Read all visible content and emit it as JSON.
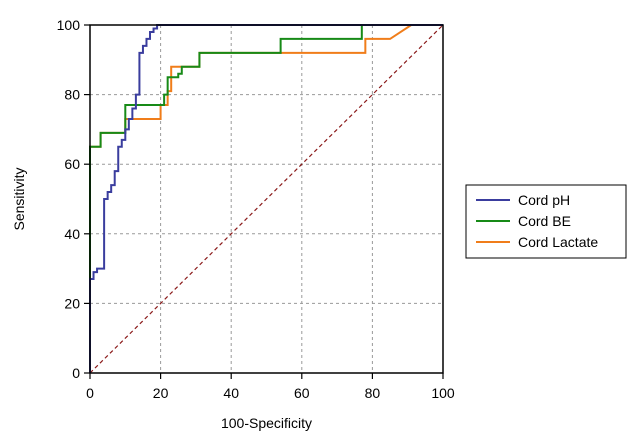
{
  "chart_data": {
    "type": "line",
    "title": "",
    "xlabel": "100-Specificity",
    "ylabel": "Sensitivity",
    "xlim": [
      0,
      100
    ],
    "ylim": [
      0,
      100
    ],
    "xticks": [
      0,
      20,
      40,
      60,
      80,
      100
    ],
    "yticks": [
      0,
      20,
      40,
      60,
      80,
      100
    ],
    "grid": true,
    "legend_position": "right",
    "series": [
      {
        "name": "Cord pH",
        "color": "#3a3d9e",
        "points": [
          [
            0,
            0
          ],
          [
            0,
            27
          ],
          [
            1,
            27
          ],
          [
            1,
            29
          ],
          [
            2,
            29
          ],
          [
            2,
            30
          ],
          [
            4,
            30
          ],
          [
            4,
            50
          ],
          [
            5,
            50
          ],
          [
            5,
            52
          ],
          [
            6,
            52
          ],
          [
            6,
            54
          ],
          [
            7,
            54
          ],
          [
            7,
            58
          ],
          [
            8,
            58
          ],
          [
            8,
            62
          ],
          [
            8,
            65
          ],
          [
            9,
            65
          ],
          [
            9,
            67
          ],
          [
            10,
            67
          ],
          [
            10,
            70
          ],
          [
            11,
            70
          ],
          [
            11,
            73
          ],
          [
            12,
            73
          ],
          [
            12,
            76
          ],
          [
            13,
            76
          ],
          [
            13,
            80
          ],
          [
            14,
            80
          ],
          [
            14,
            92
          ],
          [
            15,
            92
          ],
          [
            15,
            94
          ],
          [
            16,
            94
          ],
          [
            16,
            96
          ],
          [
            17,
            96
          ],
          [
            17,
            98
          ],
          [
            18,
            98
          ],
          [
            18,
            99
          ],
          [
            19,
            99
          ],
          [
            19,
            100
          ],
          [
            100,
            100
          ]
        ]
      },
      {
        "name": "Cord BE",
        "color": "#178a17",
        "points": [
          [
            0,
            0
          ],
          [
            0,
            65
          ],
          [
            1,
            65
          ],
          [
            3,
            65
          ],
          [
            3,
            69
          ],
          [
            6,
            69
          ],
          [
            6,
            69
          ],
          [
            10,
            69
          ],
          [
            10,
            77
          ],
          [
            19,
            77
          ],
          [
            19,
            77
          ],
          [
            21,
            77
          ],
          [
            21,
            80
          ],
          [
            22,
            80
          ],
          [
            22,
            85
          ],
          [
            24,
            85
          ],
          [
            24,
            85
          ],
          [
            25,
            85
          ],
          [
            25,
            86
          ],
          [
            26,
            86
          ],
          [
            26,
            88
          ],
          [
            27,
            88
          ],
          [
            27,
            88
          ],
          [
            31,
            88
          ],
          [
            31,
            92
          ],
          [
            54,
            92
          ],
          [
            54,
            96
          ],
          [
            77,
            96
          ],
          [
            77,
            100
          ],
          [
            100,
            100
          ]
        ]
      },
      {
        "name": "Cord Lactate",
        "color": "#f07d1a",
        "points": [
          [
            0,
            0
          ],
          [
            0,
            65
          ],
          [
            3,
            65
          ],
          [
            3,
            69
          ],
          [
            10,
            69
          ],
          [
            10,
            73
          ],
          [
            20,
            73
          ],
          [
            20,
            77
          ],
          [
            22,
            77
          ],
          [
            22,
            81
          ],
          [
            23,
            81
          ],
          [
            23,
            88
          ],
          [
            31,
            88
          ],
          [
            31,
            92
          ],
          [
            77,
            92
          ],
          [
            77,
            92
          ],
          [
            78,
            92
          ],
          [
            78,
            96
          ],
          [
            85,
            96
          ],
          [
            85,
            96
          ],
          [
            91,
            100
          ],
          [
            100,
            100
          ]
        ]
      }
    ],
    "reference_line": {
      "points": [
        [
          0,
          0
        ],
        [
          100,
          100
        ]
      ],
      "color": "#8b1a1a",
      "style": "dashed"
    }
  }
}
